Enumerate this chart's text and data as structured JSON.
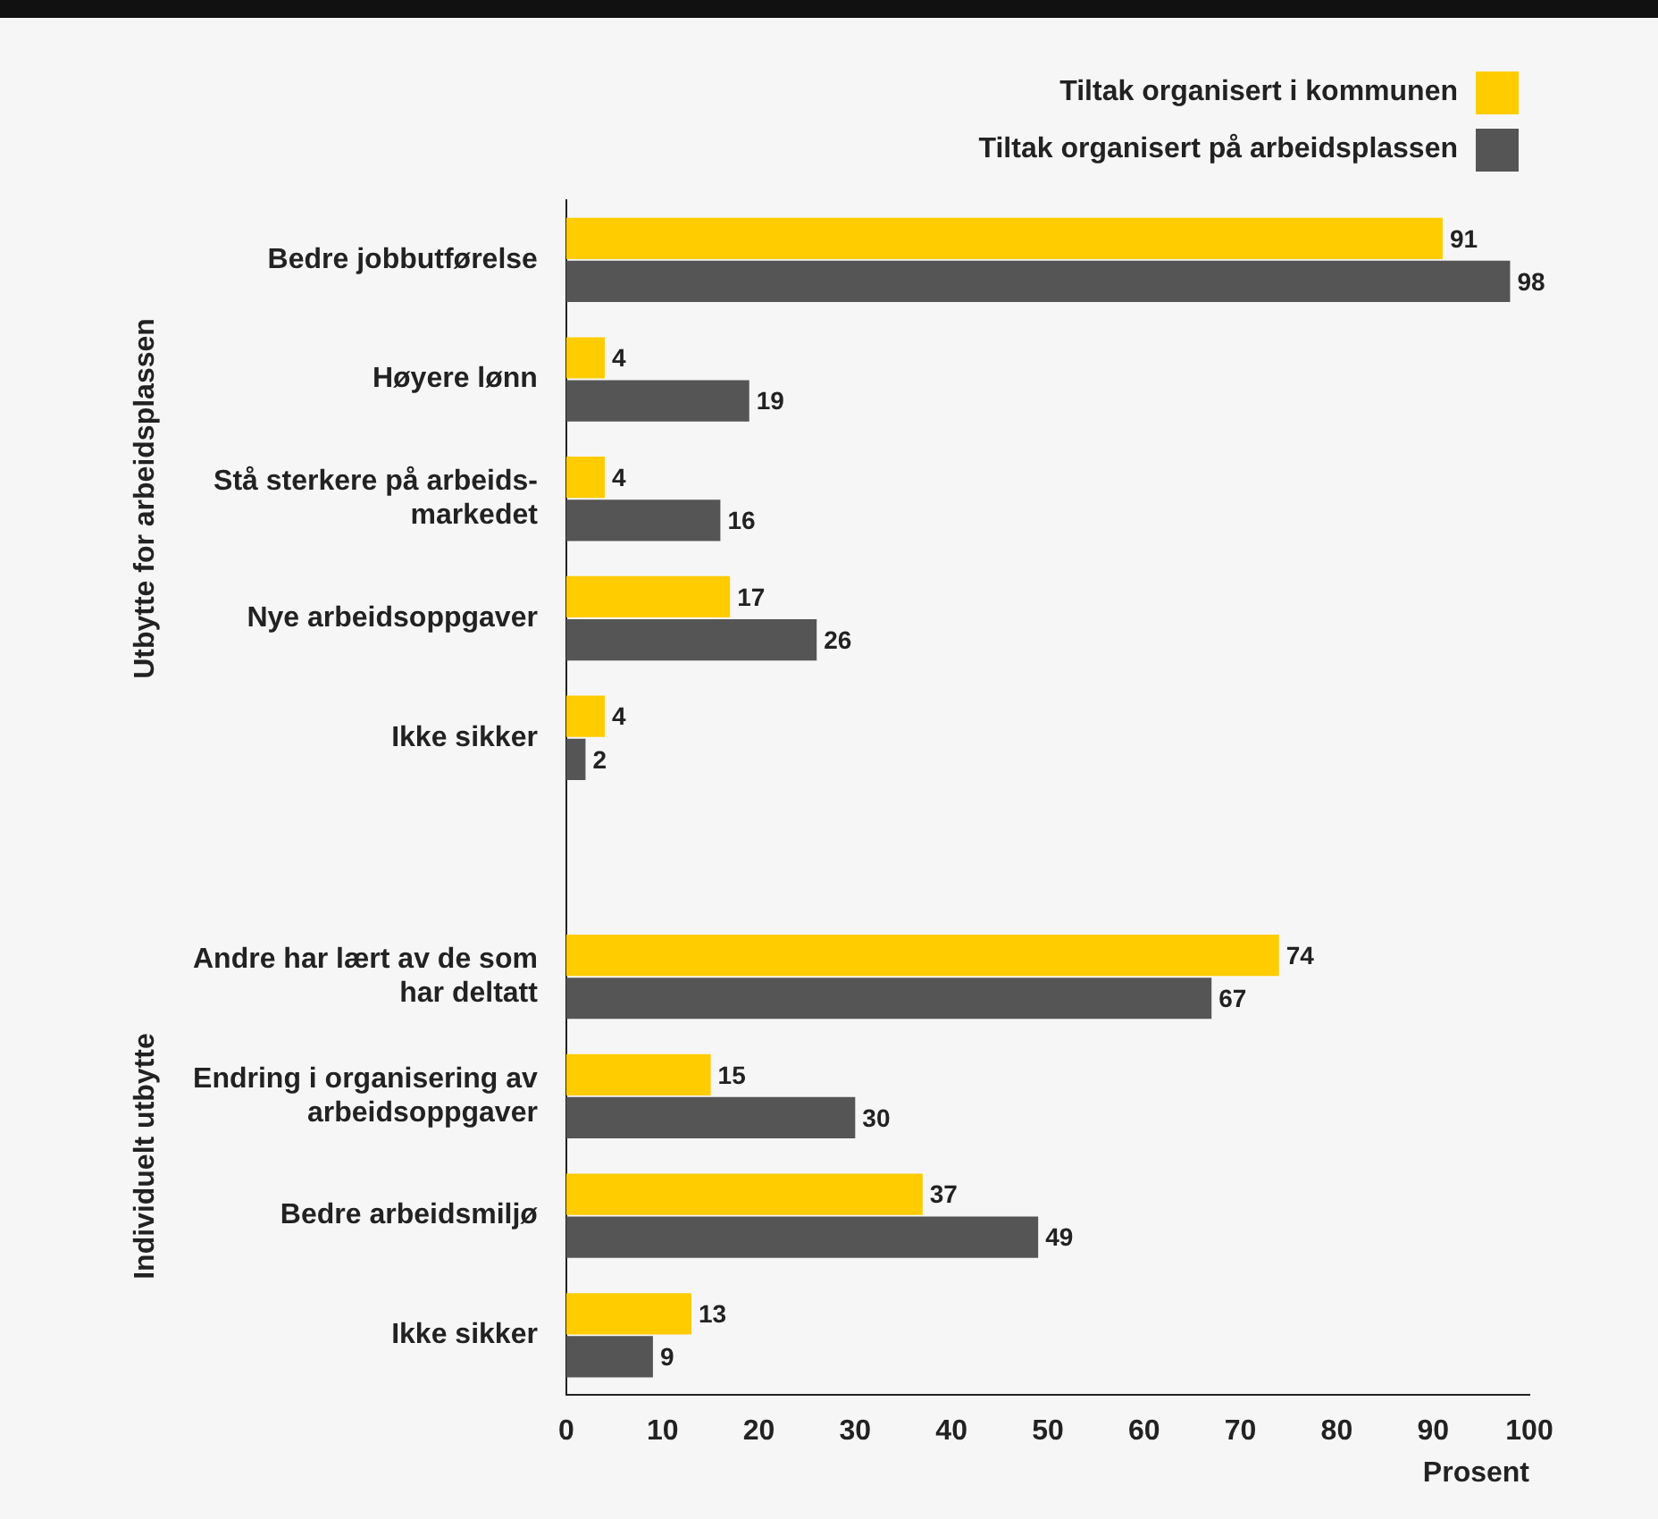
{
  "chart_data": {
    "type": "bar",
    "orientation": "horizontal",
    "xlabel": "Prosent",
    "categories": [
      "Bedre jobbutførelse",
      "Høyere lønn",
      "Stå sterkere på arbeids-\nmarkedet",
      "Nye arbeidsoppgaver",
      "Ikke sikker",
      null,
      "Andre har lært av de som\nhar deltatt",
      "Endring i organisering av\narbeidsoppgaver",
      "Bedre arbeidsmiljø",
      "Ikke sikker"
    ],
    "series": [
      {
        "name": "Tiltak organisert i kommunen",
        "color": "#ffcc00",
        "values": [
          91,
          4,
          4,
          17,
          4,
          null,
          74,
          15,
          37,
          13
        ]
      },
      {
        "name": "Tiltak organisert på arbeidsplassen",
        "color": "#555555",
        "values": [
          98,
          19,
          16,
          26,
          2,
          null,
          67,
          30,
          49,
          9
        ]
      }
    ],
    "xlim": [
      0,
      100
    ],
    "xticks": [
      0,
      10,
      20,
      30,
      40,
      50,
      60,
      70,
      80,
      90,
      100
    ],
    "data_labels": true,
    "legend": "top right",
    "annotations": [
      "Utbytte for arbeidsplassen",
      "Individuelt utbytte"
    ]
  }
}
